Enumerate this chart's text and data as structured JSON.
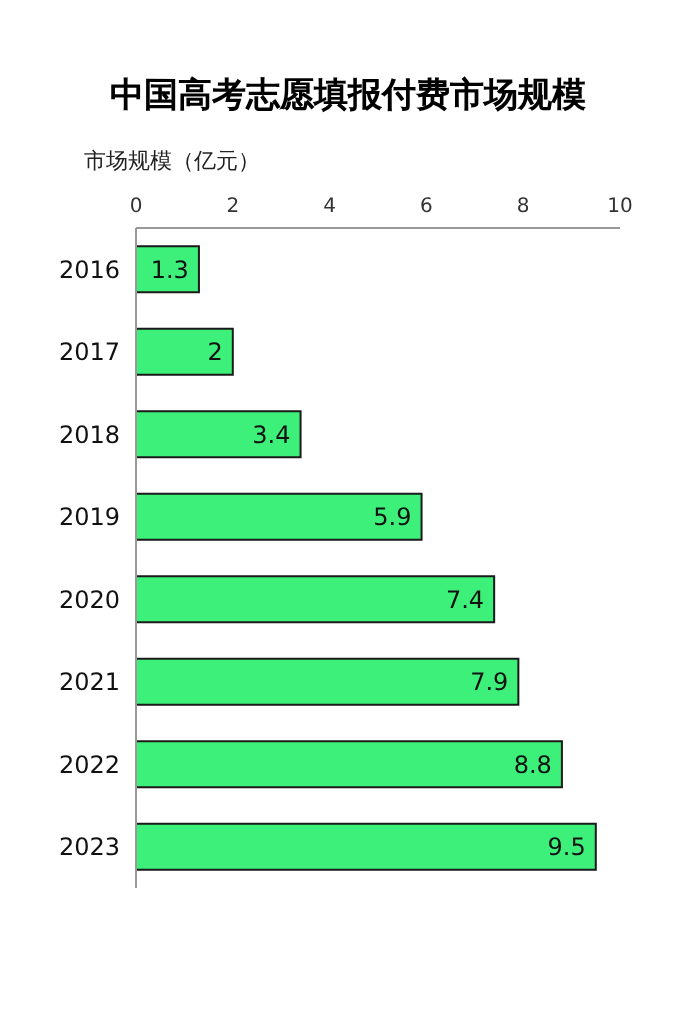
{
  "chart_data": {
    "type": "bar",
    "orientation": "horizontal",
    "title": "中国高考志愿填报付费市场规模",
    "xlabel": "市场规模（亿元）",
    "categories": [
      "2016",
      "2017",
      "2018",
      "2019",
      "2020",
      "2021",
      "2022",
      "2023"
    ],
    "values": [
      1.3,
      2,
      3.4,
      5.9,
      7.4,
      7.9,
      8.8,
      9.5
    ],
    "color": "#3df07a",
    "xlim": [
      0,
      10
    ],
    "xticks": [
      0,
      2,
      4,
      6,
      8,
      10
    ],
    "data_labels": true
  }
}
